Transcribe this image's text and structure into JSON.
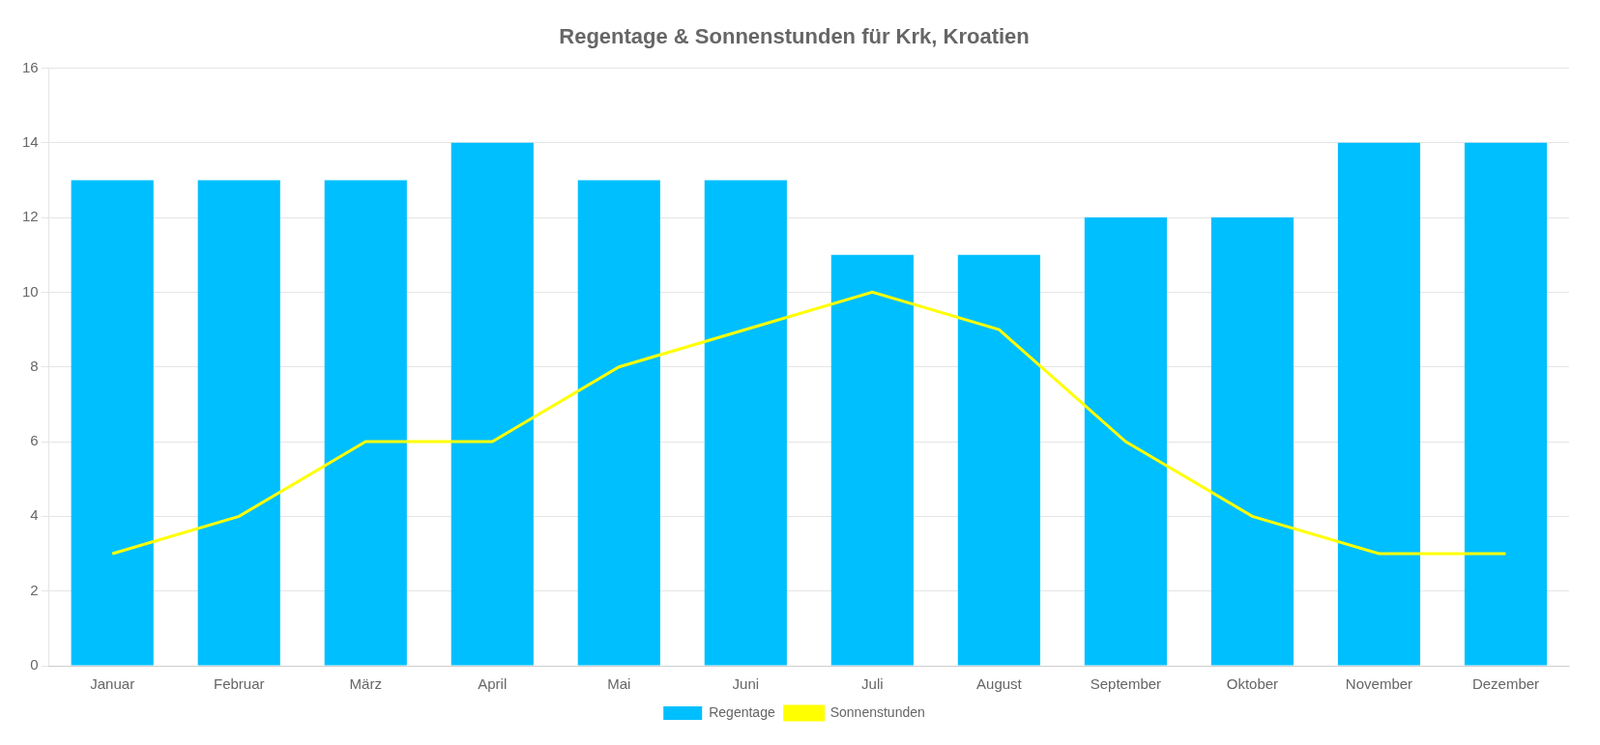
{
  "chart_data": {
    "type": "bar",
    "title": "Regentage & Sonnenstunden für Krk, Kroatien",
    "categories": [
      "Januar",
      "Februar",
      "März",
      "April",
      "Mai",
      "Juni",
      "Juli",
      "August",
      "September",
      "Oktober",
      "November",
      "Dezember"
    ],
    "series": [
      {
        "name": "Regentage",
        "type": "bar",
        "color": "#00BFFF",
        "values": [
          13,
          13,
          13,
          14,
          13,
          13,
          11,
          11,
          12,
          12,
          14,
          14
        ]
      },
      {
        "name": "Sonnenstunden",
        "type": "line",
        "color": "#FFFF00",
        "values": [
          3,
          4,
          6,
          6,
          8,
          9,
          10,
          9,
          6,
          4,
          3,
          3
        ]
      }
    ],
    "ylim": [
      0,
      16
    ],
    "yticks": [
      0,
      2,
      4,
      6,
      8,
      10,
      12,
      14,
      16
    ],
    "grid": true,
    "legend": "bottom"
  }
}
